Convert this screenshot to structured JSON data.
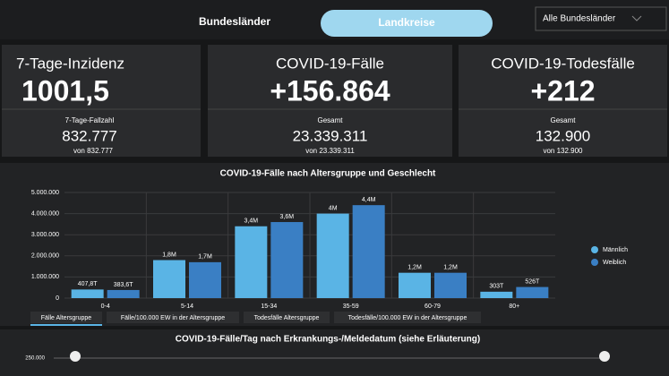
{
  "header": {
    "tabs": [
      "Bundesländer",
      "Landkreise"
    ],
    "dropdown": "Alle Bundesländer"
  },
  "cards": [
    {
      "title": "7-Tage-Inzidenz",
      "value": "1001,5",
      "sub_label": "7-Tage-Fallzahl",
      "sub_value": "832.777",
      "note": "von 832.777"
    },
    {
      "title": "COVID-19-Fälle",
      "value": "+156.864",
      "sub_label": "Gesamt",
      "sub_value": "23.339.311",
      "note": "von 23.339.311"
    },
    {
      "title": "COVID-19-Todesfälle",
      "value": "+212",
      "sub_label": "Gesamt",
      "sub_value": "132.900",
      "note": "von 132.900"
    }
  ],
  "chart_data": {
    "type": "bar",
    "title": "COVID-19-Fälle nach Altersgruppe und Geschlecht",
    "categories": [
      "0-4",
      "5-14",
      "15-34",
      "35-59",
      "60-79",
      "80+"
    ],
    "series": [
      {
        "name": "Männlich",
        "color": "#5ab4e5",
        "values": [
          407800,
          1800000,
          3400000,
          4000000,
          1200000,
          303000
        ],
        "value_labels": [
          "407,8T",
          "1,8M",
          "3,4M",
          "4M",
          "1,2M",
          "303T"
        ]
      },
      {
        "name": "Weiblich",
        "color": "#3a7fc4",
        "values": [
          383600,
          1700000,
          3600000,
          4400000,
          1200000,
          526000
        ],
        "value_labels": [
          "383,6T",
          "1,7M",
          "3,6M",
          "4,4M",
          "1,2M",
          "526T"
        ]
      }
    ],
    "ylim": [
      0,
      5000000
    ],
    "yticks": [
      0,
      {
        "value": 1000000,
        "label": "1.000.000"
      },
      {
        "value": 2000000,
        "label": "2.000.000"
      },
      {
        "value": 3000000,
        "label": "3.000.000"
      },
      {
        "value": 4000000,
        "label": "4.000.000"
      },
      {
        "value": 5000000,
        "label": "5.000.000"
      }
    ],
    "grid": true,
    "legend": "right"
  },
  "chart_tabs": [
    "Fälle Altersgruppe",
    "Fälle/100.000 EW in der Altersgruppe",
    "Todesfälle Altersgruppe",
    "Todesfälle/100.000 EW in der Altersgruppe"
  ],
  "bottom_panel": {
    "title": "COVID-19-Fälle/Tag nach Erkrankungs-/Meldedatum (siehe Erläuterung)",
    "axis_label": "250.000"
  }
}
